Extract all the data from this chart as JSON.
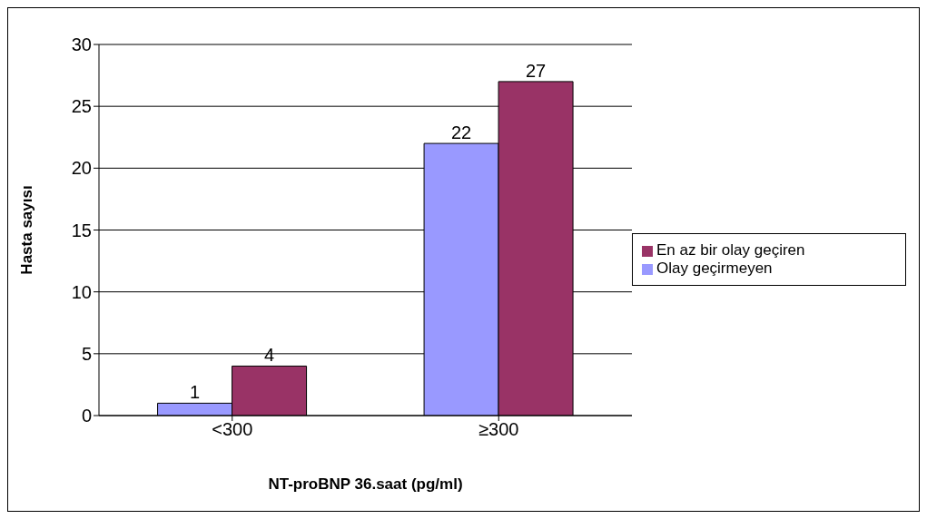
{
  "chart_data": {
    "type": "bar",
    "xlabel": "NT-proBNP 36.saat (pg/ml)",
    "ylabel": "Hasta sayısı",
    "categories": [
      "<300",
      "≥300"
    ],
    "series": [
      {
        "name": "Olay geçirmeyen",
        "color": "#9999ff",
        "values": [
          1,
          22
        ]
      },
      {
        "name": "En az bir olay geçiren",
        "color": "#993366",
        "values": [
          4,
          27
        ]
      }
    ],
    "ylim": [
      0,
      30
    ],
    "yticks": [
      0,
      5,
      10,
      15,
      20,
      25,
      30
    ],
    "grid": "y",
    "legend": "right",
    "data_labels": true
  }
}
